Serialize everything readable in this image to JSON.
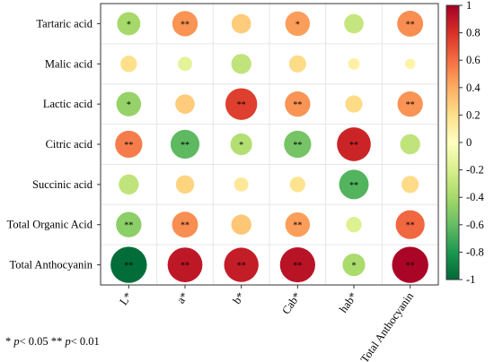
{
  "chart_data": {
    "type": "heatmap",
    "rows": [
      "Tartaric acid",
      "Malic acid",
      "Lactic acid",
      "Citric acid",
      "Succinic acid",
      "Total Organic Acid",
      "Total Anthocyanin"
    ],
    "columns": [
      "L*",
      "a*",
      "b*",
      "Cab*",
      "hab*",
      "Total Anthocyanin"
    ],
    "values": [
      [
        -0.4,
        0.48,
        0.28,
        0.45,
        -0.28,
        0.5
      ],
      [
        0.2,
        -0.15,
        -0.3,
        0.22,
        0.1,
        0.08
      ],
      [
        -0.45,
        0.28,
        0.75,
        0.48,
        0.22,
        0.48
      ],
      [
        0.55,
        -0.62,
        -0.35,
        -0.55,
        0.85,
        -0.3
      ],
      [
        -0.3,
        0.25,
        0.15,
        0.18,
        -0.65,
        0.22
      ],
      [
        -0.48,
        0.5,
        0.3,
        0.45,
        -0.18,
        0.62
      ],
      [
        -0.98,
        0.9,
        0.88,
        0.92,
        -0.38,
        0.98
      ]
    ],
    "significance": [
      [
        "*",
        "**",
        "",
        "*",
        "",
        "**"
      ],
      [
        "",
        "",
        "",
        "",
        "",
        ""
      ],
      [
        "*",
        "",
        "**",
        "**",
        "",
        "**"
      ],
      [
        "**",
        "**",
        "*",
        "**",
        "**",
        ""
      ],
      [
        "",
        "",
        "",
        "",
        "**",
        ""
      ],
      [
        "**",
        "**",
        "",
        "**",
        "",
        "**"
      ],
      [
        "**",
        "**",
        "**",
        "**",
        "*",
        "**"
      ]
    ],
    "colorbar": {
      "min": -1,
      "max": 1,
      "ticks": [
        "-1",
        "-0.8",
        "-0.6",
        "-0.4",
        "-0.2",
        "0",
        "0.2",
        "0.4",
        "0.6",
        "0.8",
        "1"
      ],
      "colors": [
        "#006837",
        "#1a9850",
        "#66bd63",
        "#a6d96a",
        "#d9ef8b",
        "#ffffbf",
        "#fee08b",
        "#fdae61",
        "#f46d43",
        "#d73027",
        "#a50026"
      ]
    }
  },
  "footnote": {
    "p_single": "*",
    "p_symbol": "p",
    "p_single_value": "< 0.05",
    "p_double": "**",
    "p_double_value": "< 0.01"
  }
}
